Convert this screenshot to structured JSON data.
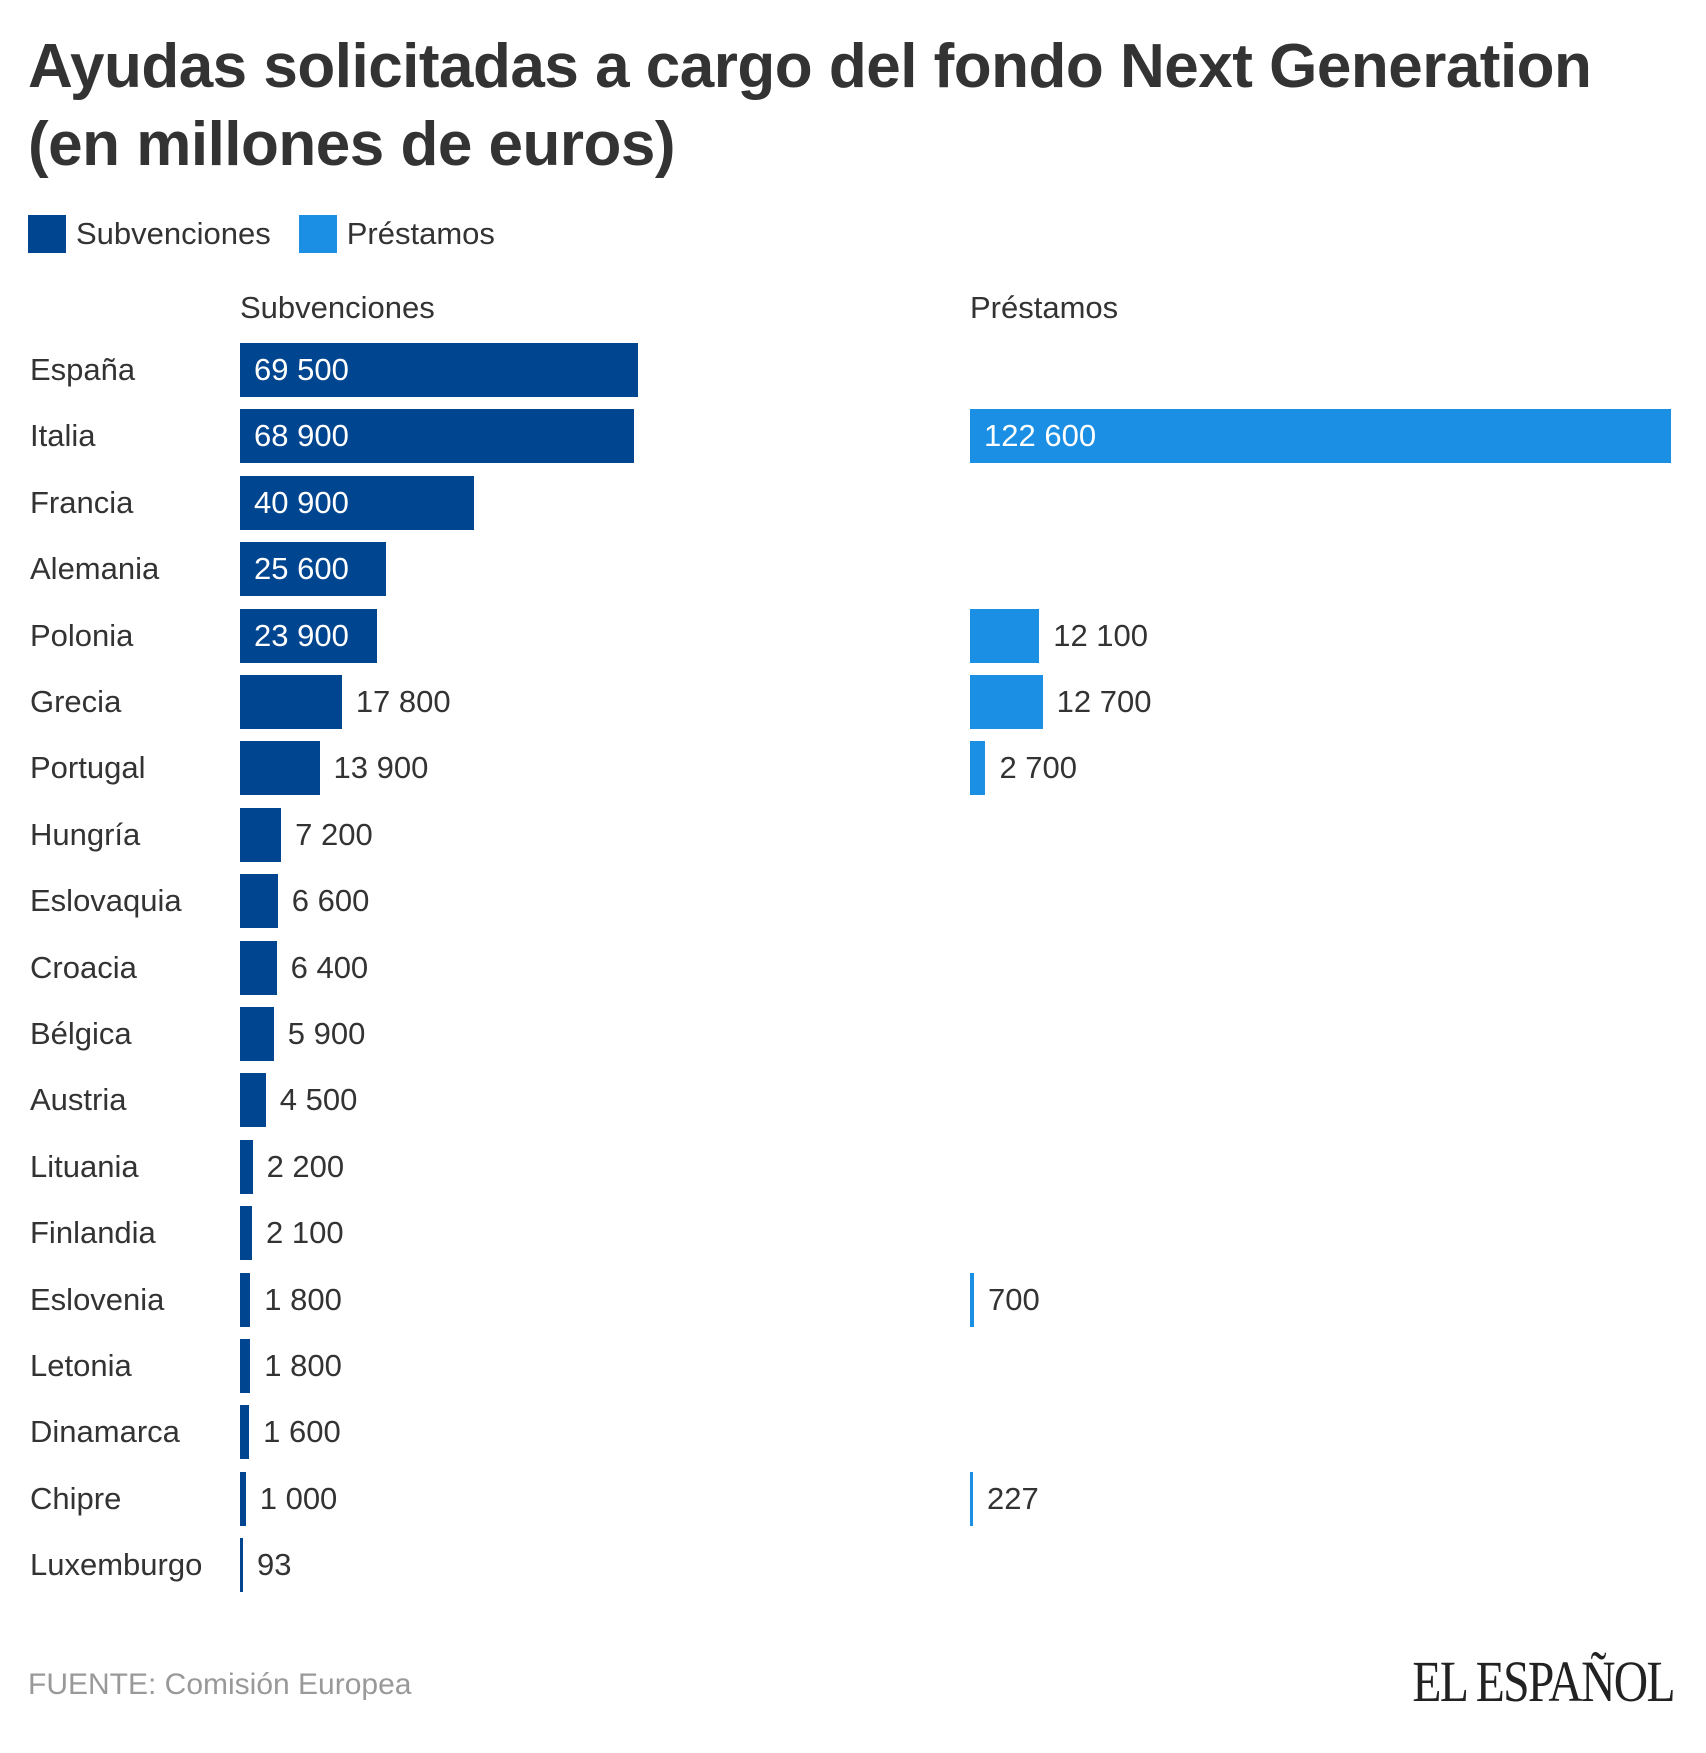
{
  "title": "Ayudas solicitadas a cargo del fondo Next Generation (en millones de euros)",
  "colors": {
    "subvenciones": "#00458f",
    "prestamos": "#1b8fe3",
    "text": "#333333"
  },
  "legend": [
    {
      "label": "Subvenciones",
      "color": "#00458f"
    },
    {
      "label": "Préstamos",
      "color": "#1b8fe3"
    }
  ],
  "chart_data": {
    "type": "bar",
    "orientation": "horizontal",
    "title": "Ayudas solicitadas a cargo del fondo Next Generation (en millones de euros)",
    "categories": [
      "España",
      "Italia",
      "Francia",
      "Alemania",
      "Polonia",
      "Grecia",
      "Portugal",
      "Hungría",
      "Eslovaquia",
      "Croacia",
      "Bélgica",
      "Austria",
      "Lituania",
      "Finlandia",
      "Eslovenia",
      "Letonia",
      "Dinamarca",
      "Chipre",
      "Luxemburgo"
    ],
    "series": [
      {
        "name": "Subvenciones",
        "values": [
          69500,
          68900,
          40900,
          25600,
          23900,
          17800,
          13900,
          7200,
          6600,
          6400,
          5900,
          4500,
          2200,
          2100,
          1800,
          1800,
          1600,
          1000,
          93
        ],
        "labels": [
          "69 500",
          "68 900",
          "40 900",
          "25 600",
          "23 900",
          "17 800",
          "13 900",
          "7 200",
          "6 600",
          "6 400",
          "5 900",
          "4 500",
          "2 200",
          "2 100",
          "1 800",
          "1 800",
          "1 600",
          "1 000",
          "93"
        ]
      },
      {
        "name": "Préstamos",
        "values": [
          null,
          122600,
          null,
          null,
          12100,
          12700,
          2700,
          null,
          null,
          null,
          null,
          null,
          null,
          null,
          700,
          null,
          null,
          227,
          null
        ],
        "labels": [
          "",
          "122 600",
          "",
          "",
          "12 100",
          "12 700",
          "2 700",
          "",
          "",
          "",
          "",
          "",
          "",
          "",
          "700",
          "",
          "",
          "227",
          ""
        ]
      }
    ],
    "legend_position": "top-left",
    "grid": false
  },
  "source": "FUENTE: Comisión Europea",
  "logo": "EL ESPAÑOL"
}
